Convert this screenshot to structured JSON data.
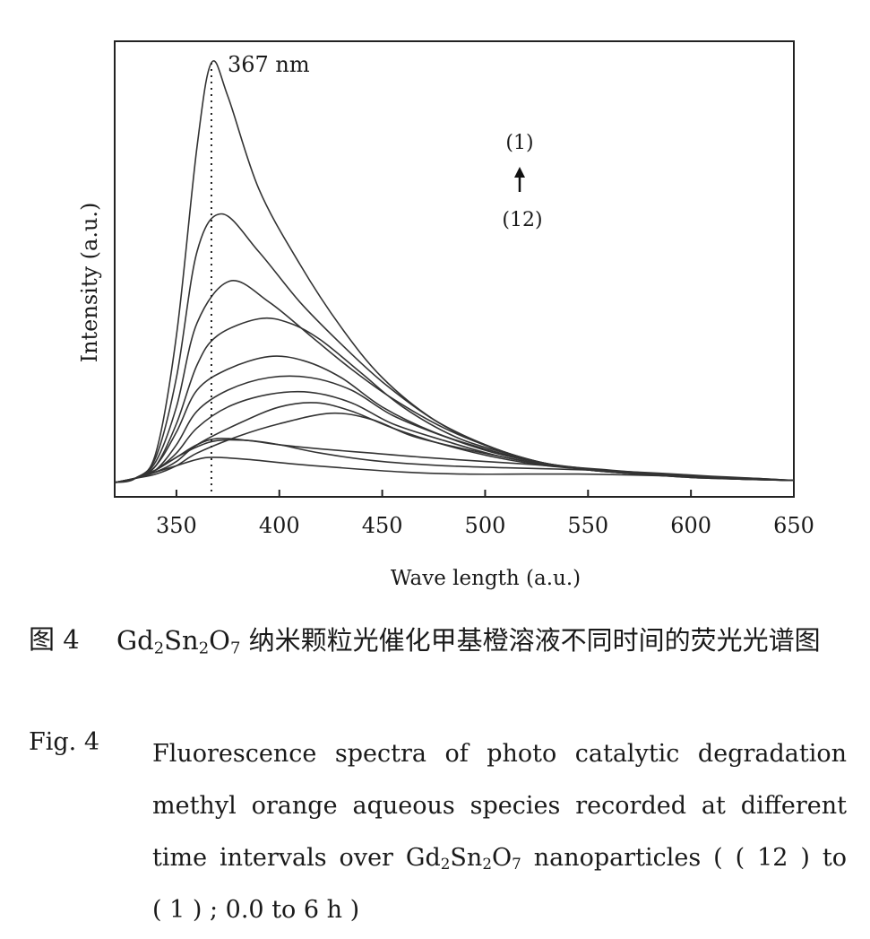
{
  "chart_data": {
    "type": "line",
    "title": "",
    "xlabel": "Wave length (a.u.)",
    "ylabel": "Intensity (a.u.)",
    "xlim": [
      320,
      650
    ],
    "ylim": [
      0,
      100
    ],
    "xticks": [
      350,
      400,
      450,
      500,
      550,
      600,
      650
    ],
    "yticks": [],
    "grid": false,
    "legend": "none",
    "annotations": {
      "peak_label": "367 nm",
      "peak_x": 367,
      "arrow_top": "(1)",
      "arrow_bottom": "(12)"
    },
    "series": [
      {
        "x": [
          320,
          330,
          340,
          350,
          360,
          367,
          375,
          390,
          410,
          430,
          450,
          475,
          500,
          525,
          550,
          575,
          600,
          625,
          650
        ],
        "y": [
          0,
          1,
          7,
          35,
          80,
          100,
          92,
          70,
          52,
          37,
          25,
          15,
          9,
          5,
          3,
          2,
          1.2,
          0.8,
          0.5
        ]
      },
      {
        "x": [
          320,
          330,
          340,
          350,
          360,
          372,
          390,
          410,
          430,
          450,
          475,
          500,
          525,
          550,
          575,
          600,
          625,
          650
        ],
        "y": [
          0,
          1,
          6,
          25,
          55,
          64,
          55,
          43,
          33,
          24,
          15,
          9,
          5,
          3,
          2,
          1.2,
          0.8,
          0.5
        ]
      },
      {
        "x": [
          320,
          330,
          340,
          350,
          360,
          376,
          395,
          415,
          435,
          455,
          480,
          505,
          530,
          555,
          580,
          605,
          630,
          650
        ],
        "y": [
          0,
          1,
          5,
          18,
          38,
          48,
          43,
          35,
          27,
          20,
          13,
          8,
          4.5,
          3,
          2,
          1.2,
          0.8,
          0.5
        ]
      },
      {
        "x": [
          320,
          330,
          340,
          350,
          360,
          370,
          390,
          405,
          420,
          440,
          460,
          485,
          510,
          535,
          560,
          590,
          620,
          650
        ],
        "y": [
          0,
          1,
          4,
          14,
          28,
          35,
          39,
          38,
          34,
          26,
          18,
          11,
          7,
          4,
          2.8,
          1.8,
          1,
          0.5
        ]
      },
      {
        "x": [
          320,
          330,
          340,
          350,
          360,
          375,
          395,
          412,
          430,
          450,
          475,
          500,
          525,
          550,
          575,
          600,
          625,
          650
        ],
        "y": [
          0,
          1,
          4,
          12,
          22,
          27,
          30,
          29,
          25,
          18,
          12,
          8,
          5,
          3,
          2,
          1.3,
          0.8,
          0.5
        ]
      },
      {
        "x": [
          320,
          330,
          340,
          350,
          360,
          375,
          395,
          415,
          435,
          455,
          480,
          505,
          530,
          555,
          580,
          605,
          630,
          650
        ],
        "y": [
          0,
          1,
          3,
          9,
          17,
          22,
          25,
          25,
          22,
          16,
          11,
          7,
          4.5,
          3,
          2,
          1.3,
          0.8,
          0.5
        ]
      },
      {
        "x": [
          320,
          330,
          340,
          350,
          360,
          375,
          395,
          415,
          435,
          455,
          480,
          505,
          530,
          555,
          580,
          605,
          630,
          650
        ],
        "y": [
          0,
          1,
          3,
          7,
          13,
          18,
          21,
          21.5,
          19,
          14,
          10,
          6.5,
          4.2,
          3,
          2,
          1.3,
          0.8,
          0.5
        ]
      },
      {
        "x": [
          320,
          330,
          340,
          350,
          360,
          380,
          400,
          418,
          435,
          455,
          480,
          505,
          530,
          555,
          580,
          605,
          630,
          650
        ],
        "y": [
          0,
          1,
          2.5,
          5,
          9,
          14,
          18,
          19,
          17,
          13,
          9,
          6,
          4,
          3,
          2,
          1.3,
          0.8,
          0.5
        ]
      },
      {
        "x": [
          320,
          330,
          340,
          350,
          360,
          380,
          400,
          425,
          445,
          465,
          490,
          515,
          535,
          560,
          585,
          610,
          635,
          650
        ],
        "y": [
          0,
          1,
          2,
          4,
          7,
          11,
          14,
          16.5,
          15,
          11,
          8,
          5.5,
          4,
          3,
          2,
          1.3,
          0.8,
          0.5
        ]
      },
      {
        "x": [
          320,
          330,
          340,
          350,
          360,
          370,
          385,
          400,
          420,
          445,
          470,
          500,
          525,
          550,
          575,
          600,
          625,
          650
        ],
        "y": [
          0,
          1,
          3,
          6,
          9,
          10.5,
          10,
          9,
          8,
          7,
          6,
          5,
          4.2,
          3.2,
          2.2,
          1.4,
          0.8,
          0.5
        ]
      },
      {
        "x": [
          320,
          330,
          340,
          350,
          360,
          370,
          385,
          400,
          420,
          450,
          480,
          510,
          535,
          560,
          585,
          610,
          635,
          650
        ],
        "y": [
          0,
          1,
          3,
          6,
          8.5,
          10,
          10,
          9,
          7,
          5,
          4,
          3.5,
          3.2,
          2.8,
          2.2,
          1.5,
          0.9,
          0.5
        ]
      },
      {
        "x": [
          320,
          330,
          340,
          350,
          360,
          368,
          385,
          405,
          430,
          460,
          490,
          520,
          545,
          570,
          600,
          630,
          650
        ],
        "y": [
          0,
          1,
          2.5,
          4,
          5.5,
          6,
          5.5,
          4.5,
          3.5,
          2.5,
          2,
          2,
          2,
          1.8,
          1.4,
          1,
          0.5
        ]
      }
    ]
  },
  "caption": {
    "cn_label": "图 4",
    "cn_pre": "Gd",
    "cn_sub1": "2",
    "cn_mid": "Sn",
    "cn_sub2": "2",
    "cn_o": "O",
    "cn_sub3": "7",
    "cn_text": " 纳米颗粒光催化甲基橙溶液不同时间的荧光光谱图",
    "en_label": "Fig. 4",
    "en_line1": "Fluorescence spectra of photo catalytic degradation",
    "en_line2": "methyl orange aqueous species recorded at different",
    "en_line3_pre": "time intervals over Gd",
    "en_sub1": "2",
    "en_sn": "Sn",
    "en_sub2": "2",
    "en_o": "O",
    "en_sub3": "7",
    "en_line3_post": " nanoparticles ( ( 12 )  to",
    "en_line4": "( 1 ) ; 0.0 to 6 h )"
  }
}
